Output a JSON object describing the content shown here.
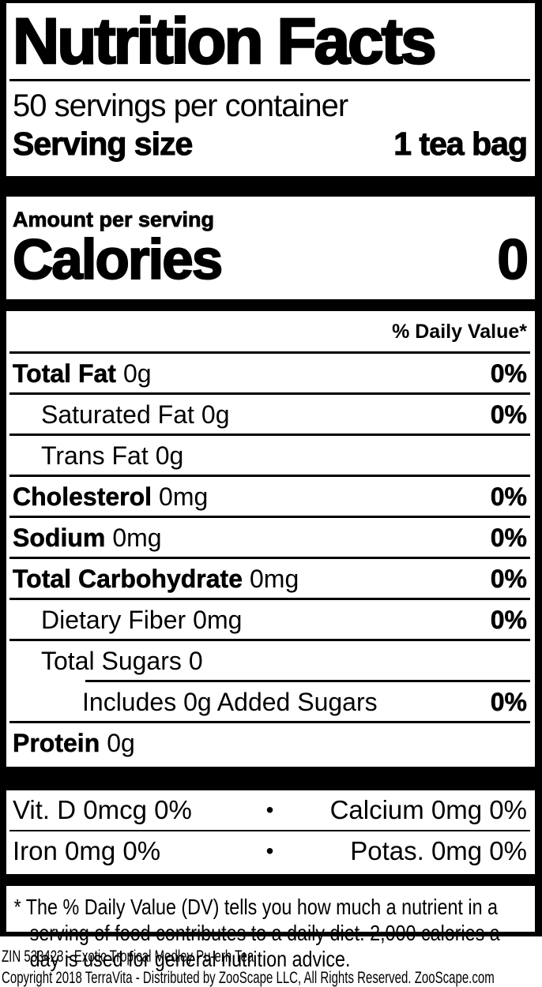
{
  "colors": {
    "ink": "#000000",
    "background": "#ffffff"
  },
  "header": {
    "title": "Nutrition Facts",
    "servings_per_container": "50 servings per container",
    "serving_size_label": "Serving size",
    "serving_size_value": "1 tea bag"
  },
  "calories_section": {
    "amount_per_serving": "Amount per serving",
    "calories_label": "Calories",
    "calories_value": "0"
  },
  "daily_value_header": "% Daily Value*",
  "nutrient_rows": [
    {
      "name": "Total Fat",
      "amount": "0g",
      "dv": "0%"
    },
    {
      "name": "Saturated Fat",
      "amount": "0g",
      "dv": "0%"
    },
    {
      "name": "Trans Fat",
      "amount": "0g",
      "dv": ""
    },
    {
      "name": "Cholesterol",
      "amount": "0mg",
      "dv": "0%"
    },
    {
      "name": "Sodium",
      "amount": "0mg",
      "dv": "0%"
    },
    {
      "name": "Total Carbohydrate",
      "amount": "0mg",
      "dv": "0%"
    },
    {
      "name": "Dietary Fiber",
      "amount": "0mg",
      "dv": "0%"
    },
    {
      "name": "Total Sugars",
      "amount": "0",
      "dv": ""
    },
    {
      "name": "Includes 0g Added Sugars",
      "amount": "",
      "dv": "0%"
    },
    {
      "name": "Protein",
      "amount": "0g",
      "dv": ""
    }
  ],
  "micronutrients": [
    {
      "left": "Vit. D 0mcg 0%",
      "bullet": "•",
      "right": "Calcium 0mg 0%"
    },
    {
      "left": "Iron 0mg 0%",
      "bullet": "•",
      "right": "Potas. 0mg 0%"
    }
  ],
  "footnote": "* The % Daily Value (DV) tells you how much a nutrient in a serving of food contributes to a daily diet. 2,000 calories a day is used for general nutrition advice.",
  "footer": {
    "line1": "ZIN 533423 - Exotic Tropical Medley Pu-erh Tea",
    "line2": "Copyright 2018 TerraVita - Distributed by ZooScape LLC, All Rights Reserved. ZooScape.com"
  }
}
